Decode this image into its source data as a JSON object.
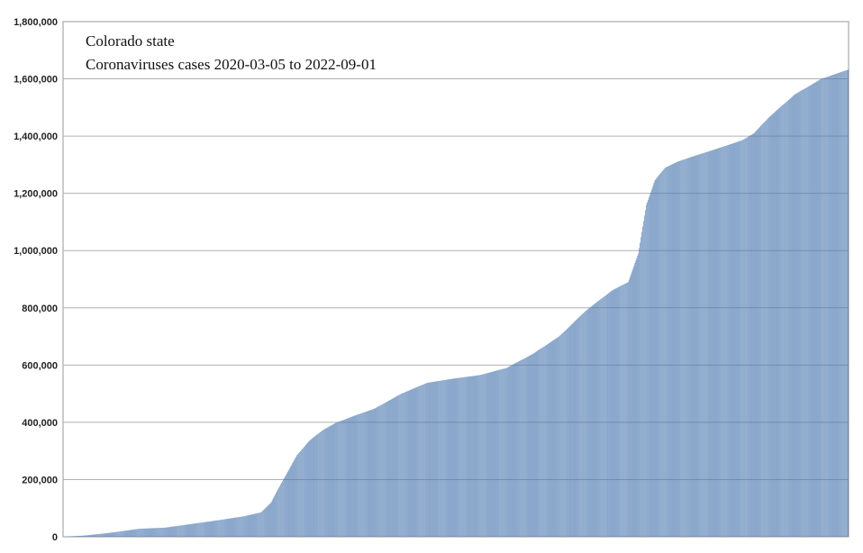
{
  "chart_data": {
    "type": "bar",
    "title": "Colorado state",
    "subtitle": "Coronaviruses cases 2020-03-05 to 2022-09-01",
    "xlabel": "",
    "ylabel": "",
    "x_range": [
      "2020-03-05",
      "2022-09-01"
    ],
    "ylim": [
      0,
      1800000
    ],
    "yticks": [
      "0",
      "200,000",
      "400,000",
      "600,000",
      "800,000",
      "1,000,000",
      "1,200,000",
      "1,400,000",
      "1,600,000",
      "1,800,000"
    ],
    "grid": true,
    "bar_color": "#4f7bb0",
    "gridline_color": "#b0b0b0",
    "anchor_dates": [
      "2020-03-05",
      "2020-04-01",
      "2020-05-01",
      "2020-06-01",
      "2020-07-01",
      "2020-08-01",
      "2020-09-01",
      "2020-10-01",
      "2020-10-20",
      "2020-11-01",
      "2020-11-15",
      "2020-12-01",
      "2020-12-15",
      "2021-01-01",
      "2021-01-15",
      "2021-02-01",
      "2021-03-01",
      "2021-04-01",
      "2021-05-01",
      "2021-06-01",
      "2021-07-01",
      "2021-08-01",
      "2021-09-01",
      "2021-10-01",
      "2021-11-01",
      "2021-12-01",
      "2021-12-20",
      "2022-01-01",
      "2022-01-10",
      "2022-01-20",
      "2022-02-01",
      "2022-02-15",
      "2022-03-01",
      "2022-04-01",
      "2022-05-01",
      "2022-05-15",
      "2022-06-01",
      "2022-07-01",
      "2022-08-01",
      "2022-09-01"
    ],
    "anchor_values": [
      0,
      5000,
      15000,
      28000,
      32000,
      45000,
      58000,
      72000,
      85000,
      120000,
      200000,
      285000,
      335000,
      375000,
      398000,
      418000,
      448000,
      500000,
      538000,
      553000,
      565000,
      590000,
      640000,
      700000,
      790000,
      860000,
      890000,
      990000,
      1160000,
      1245000,
      1290000,
      1310000,
      1325000,
      1355000,
      1385000,
      1410000,
      1465000,
      1545000,
      1600000,
      1632000
    ]
  }
}
